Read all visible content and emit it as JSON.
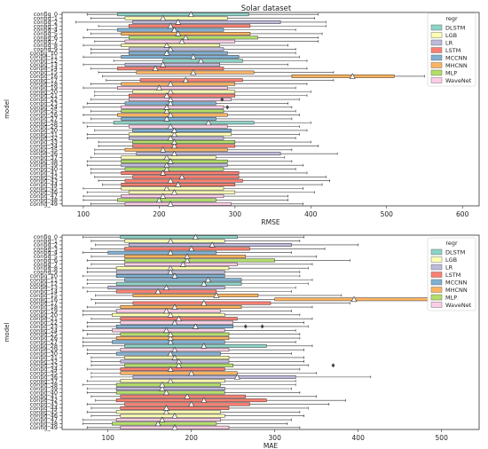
{
  "title": "Solar dataset",
  "configs": [
    "config_0",
    "config_1",
    "config_2",
    "config_3",
    "config_4",
    "config_5",
    "config_6",
    "config_7",
    "config_8",
    "config_9",
    "config_10",
    "config_11",
    "config_12",
    "config_13",
    "config_14",
    "config_15",
    "config_16",
    "config_17",
    "config_18",
    "config_19",
    "config_20",
    "config_21",
    "config_22",
    "config_23",
    "config_24",
    "config_25",
    "config_26",
    "config_27",
    "config_28",
    "config_29",
    "config_30",
    "config_31",
    "config_32",
    "config_33",
    "config_34",
    "config_35",
    "config_36",
    "config_37",
    "config_38",
    "config_39",
    "config_40",
    "config_41",
    "config_42",
    "config_43",
    "config_44",
    "config_45",
    "config_46",
    "config_47",
    "config_48",
    "config_49"
  ],
  "legend": {
    "title": "regr",
    "entries": [
      {
        "name": "DLSTM",
        "color": "#8dd3c7"
      },
      {
        "name": "LGB",
        "color": "#ffffb3"
      },
      {
        "name": "LR",
        "color": "#bebada"
      },
      {
        "name": "LSTM",
        "color": "#fb8072"
      },
      {
        "name": "MCCNN",
        "color": "#80b1d3"
      },
      {
        "name": "MHCNN",
        "color": "#fdb462"
      },
      {
        "name": "MLP",
        "color": "#b3de69"
      },
      {
        "name": "WaveNet",
        "color": "#fccde5"
      }
    ]
  },
  "chart_data": [
    {
      "type": "boxplot",
      "title": "Solar dataset",
      "xlabel": "RMSE",
      "ylabel": "model",
      "xlim": [
        72,
        622
      ],
      "xticks": [
        100,
        200,
        300,
        400,
        500,
        600
      ],
      "legend_placement": "top-right",
      "series": [
        {
          "name": "DLSTM",
          "color": "#8dd3c7",
          "configs": [
            0,
            12,
            28
          ],
          "boxes": [
            [
              105,
              145,
              242,
              318,
              410
            ],
            [
              140,
              205,
              255,
              310,
              395
            ],
            [
              100,
              140,
              265,
              325,
              400
            ]
          ]
        },
        {
          "name": "LGB",
          "color": "#ffffb3",
          "configs": [
            1,
            8,
            20,
            31,
            37,
            45,
            46
          ],
          "boxes": [
            [
              110,
              155,
              205,
              290,
              405
            ],
            [
              100,
              150,
              210,
              280,
              370
            ],
            [
              115,
              165,
              215,
              300,
              400
            ],
            [
              105,
              160,
              220,
              295,
              385
            ],
            [
              110,
              150,
              210,
              275,
              365
            ],
            [
              100,
              150,
              210,
              285,
              390
            ],
            [
              105,
              160,
              220,
              300,
              405
            ]
          ]
        },
        {
          "name": "LR",
          "color": "#bebada",
          "configs": [
            2,
            9,
            13,
            32,
            36,
            39
          ],
          "boxes": [
            [
              90,
              165,
              225,
              360,
              420
            ],
            [
              110,
              160,
              215,
              285,
              380
            ],
            [
              100,
              155,
              205,
              280,
              370
            ],
            [
              105,
              160,
              215,
              285,
              380
            ],
            [
              115,
              170,
              220,
              360,
              435
            ],
            [
              105,
              150,
              210,
              290,
              390
            ]
          ]
        },
        {
          "name": "LSTM",
          "color": "#fb8072",
          "configs": [
            3,
            14,
            17,
            21,
            34,
            41,
            42,
            43,
            44
          ],
          "boxes": [
            [
              120,
              160,
              215,
              320,
              420
            ],
            [
              110,
              145,
              195,
              285,
              395
            ],
            [
              130,
              175,
              235,
              310,
              430
            ],
            [
              115,
              160,
              210,
              300,
              395
            ],
            [
              120,
              165,
              220,
              300,
              410
            ],
            [
              110,
              150,
              205,
              305,
              395
            ],
            [
              115,
              165,
              230,
              305,
              420
            ],
            [
              120,
              155,
              215,
              310,
              425
            ],
            [
              125,
              150,
              225,
              300,
              415
            ]
          ]
        },
        {
          "name": "MCCNN",
          "color": "#80b1d3",
          "configs": [
            4,
            10,
            11,
            23,
            27,
            30
          ],
          "boxes": [
            [
              105,
              145,
              220,
              285,
              380
            ],
            [
              110,
              160,
              210,
              290,
              380
            ],
            [
              100,
              150,
              245,
              305,
              385
            ],
            [
              105,
              155,
              215,
              275,
              370
            ],
            [
              110,
              150,
              210,
              275,
              375
            ],
            [
              115,
              165,
              220,
              295,
              395
            ]
          ]
        },
        {
          "name": "MHCNN",
          "color": "#fdb462",
          "configs": [
            5,
            15,
            16,
            18,
            26,
            35
          ],
          "boxes": [
            [
              110,
              150,
              225,
              320,
              415
            ],
            [
              120,
              170,
              245,
              325,
              430
            ],
            [
              125,
              375,
              455,
              510,
              550
            ],
            [
              110,
              150,
              215,
              300,
              395
            ],
            [
              100,
              145,
              215,
              290,
              385
            ],
            [
              115,
              155,
              205,
              290,
              375
            ]
          ]
        },
        {
          "name": "MLP",
          "color": "#b3de69",
          "configs": [
            6,
            25,
            33,
            38,
            40,
            48
          ],
          "boxes": [
            [
              100,
              160,
              235,
              330,
              410
            ],
            [
              110,
              150,
              210,
              285,
              380
            ],
            [
              120,
              165,
              220,
              300,
              400
            ],
            [
              105,
              150,
              215,
              290,
              375
            ],
            [
              110,
              155,
              210,
              285,
              380
            ],
            [
              100,
              145,
              200,
              275,
              370
            ]
          ]
        },
        {
          "name": "WaveNet",
          "color": "#fccde5",
          "configs": [
            7,
            19,
            22,
            24,
            29,
            47,
            49
          ],
          "boxes": [
            [
              115,
              155,
              230,
              300,
              410
            ],
            [
              100,
              145,
              200,
              290,
              380
            ],
            [
              110,
              160,
              215,
              295,
              385
            ],
            [
              100,
              150,
              210,
              285,
              375
            ],
            [
              105,
              160,
              215,
              290,
              385
            ],
            [
              100,
              150,
              205,
              285,
              370
            ],
            [
              110,
              155,
              215,
              295,
              390
            ]
          ]
        }
      ]
    },
    {
      "type": "boxplot",
      "title": "",
      "xlabel": "MAE",
      "ylabel": "model",
      "xlim": [
        45,
        545
      ],
      "xticks": [
        100,
        200,
        300,
        400,
        500
      ],
      "legend_placement": "top-right",
      "series": [
        {
          "name": "DLSTM",
          "color": "#8dd3c7",
          "configs": [
            0,
            12,
            28
          ],
          "boxes": [
            [
              70,
              115,
              205,
              255,
              335
            ],
            [
              75,
              110,
              215,
              260,
              340
            ],
            [
              70,
              120,
              215,
              290,
              345
            ]
          ]
        },
        {
          "name": "LGB",
          "color": "#ffffb3",
          "configs": [
            1,
            8,
            20,
            31,
            37,
            45,
            46
          ],
          "boxes": [
            [
              80,
              120,
              175,
              240,
              330
            ],
            [
              75,
              110,
              175,
              245,
              340
            ],
            [
              70,
              105,
              175,
              240,
              330
            ],
            [
              80,
              120,
              180,
              245,
              335
            ],
            [
              75,
              115,
              175,
              240,
              325
            ],
            [
              75,
              110,
              170,
              235,
              330
            ],
            [
              80,
              115,
              180,
              240,
              335
            ]
          ]
        },
        {
          "name": "LR",
          "color": "#bebada",
          "configs": [
            2,
            9,
            13,
            32,
            36,
            39
          ],
          "boxes": [
            [
              85,
              125,
              225,
              320,
              400
            ],
            [
              75,
              110,
              175,
              240,
              330
            ],
            [
              70,
              100,
              170,
              240,
              325
            ],
            [
              80,
              115,
              185,
              245,
              335
            ],
            [
              80,
              130,
              255,
              325,
              415
            ],
            [
              75,
              110,
              165,
              240,
              320
            ]
          ]
        },
        {
          "name": "LSTM",
          "color": "#fb8072",
          "configs": [
            3,
            14,
            17,
            21,
            34,
            41,
            42,
            43,
            44
          ],
          "boxes": [
            [
              80,
              120,
              200,
              270,
              360
            ],
            [
              75,
              110,
              160,
              230,
              320
            ],
            [
              85,
              130,
              215,
              295,
              390
            ],
            [
              80,
              115,
              185,
              255,
              345
            ],
            [
              75,
              115,
              175,
              240,
              330
            ],
            [
              80,
              115,
              195,
              265,
              350
            ],
            [
              85,
              110,
              215,
              290,
              385
            ],
            [
              75,
              120,
              200,
              270,
              365
            ],
            [
              80,
              115,
              170,
              245,
              340
            ]
          ]
        },
        {
          "name": "MCCNN",
          "color": "#80b1d3",
          "configs": [
            4,
            10,
            11,
            23,
            27,
            30
          ],
          "boxes": [
            [
              70,
              100,
              175,
              230,
              320
            ],
            [
              70,
              110,
              180,
              240,
              330
            ],
            [
              75,
              120,
              220,
              260,
              345
            ],
            [
              75,
              110,
              205,
              250,
              340
            ],
            [
              70,
              105,
              175,
              240,
              325
            ],
            [
              75,
              110,
              175,
              235,
              320
            ]
          ]
        },
        {
          "name": "MHCNN",
          "color": "#fdb462",
          "configs": [
            5,
            15,
            16,
            18,
            26,
            35
          ],
          "boxes": [
            [
              80,
              120,
              195,
              265,
              350
            ],
            [
              85,
              130,
              230,
              280,
              380
            ],
            [
              80,
              300,
              395,
              500,
              520
            ],
            [
              75,
              115,
              180,
              260,
              345
            ],
            [
              70,
              110,
              175,
              245,
              330
            ],
            [
              80,
              115,
              200,
              255,
              350
            ]
          ]
        },
        {
          "name": "MLP",
          "color": "#b3de69",
          "configs": [
            6,
            25,
            33,
            38,
            40,
            48
          ],
          "boxes": [
            [
              75,
              120,
              195,
              300,
              390
            ],
            [
              75,
              115,
              175,
              245,
              330
            ],
            [
              80,
              120,
              185,
              250,
              340
            ],
            [
              70,
              110,
              165,
              235,
              325
            ],
            [
              75,
              110,
              170,
              240,
              330
            ],
            [
              70,
              105,
              160,
              230,
              315
            ]
          ]
        },
        {
          "name": "WaveNet",
          "color": "#fccde5",
          "configs": [
            7,
            19,
            22,
            24,
            29,
            47,
            49
          ],
          "boxes": [
            [
              80,
              120,
              190,
              255,
              345
            ],
            [
              70,
              110,
              170,
              235,
              320
            ],
            [
              75,
              115,
              180,
              250,
              335
            ],
            [
              70,
              105,
              170,
              240,
              325
            ],
            [
              75,
              115,
              180,
              245,
              335
            ],
            [
              70,
              110,
              165,
              235,
              320
            ],
            [
              75,
              115,
              180,
              245,
              330
            ]
          ]
        }
      ]
    }
  ],
  "outliers": [
    {
      "chart": 0,
      "config": 24,
      "x": 290
    },
    {
      "chart": 0,
      "config": 22,
      "x": 283
    },
    {
      "chart": 1,
      "config": 23,
      "x": 285
    },
    {
      "chart": 1,
      "config": 23,
      "x": 265
    },
    {
      "chart": 1,
      "config": 33,
      "x": 370
    }
  ]
}
